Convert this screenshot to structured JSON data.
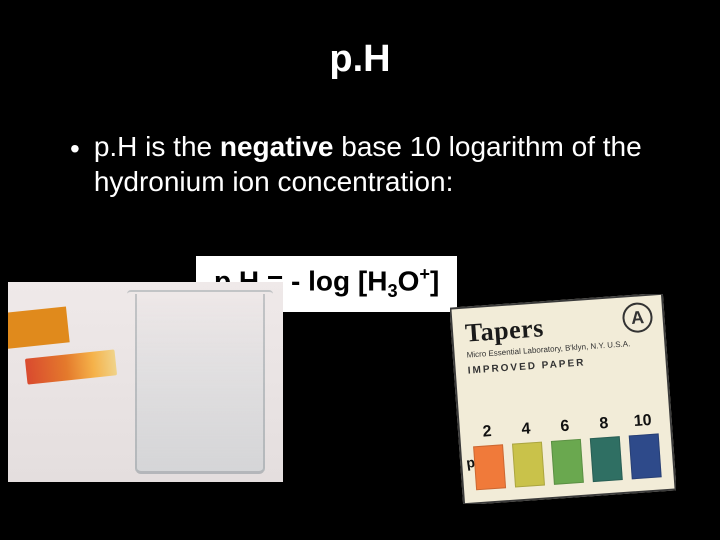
{
  "background_color": "#000000",
  "text_color": "#ffffff",
  "title": "p.H",
  "bullet": {
    "prefix": "p.H is the ",
    "emphasis": "negative",
    "suffix": " base 10 logarithm of the hydronium ion concentration:"
  },
  "formula": {
    "lhs": "p.H",
    "eq": " = - log ",
    "bracket_open": "[H",
    "subscript": "3",
    "mid": "O",
    "superscript": "+",
    "bracket_close": "]",
    "box_bg": "#ffffff",
    "box_text": "#000000"
  },
  "left_image": {
    "type": "photo-like",
    "description": "litmus-strip-over-beaker",
    "bg_color": "#efe9e9",
    "orange_tab_color": "#e08a1c",
    "strip_gradient": [
      "#d94a2f",
      "#e47a2c",
      "#f5b24a",
      "#f0d38a"
    ]
  },
  "right_image": {
    "type": "photo-like",
    "description": "ph-papers-packet",
    "packet_bg": "#f2ecd8",
    "brand": "Tapers",
    "subline1": "Micro Essential Laboratory, B'klyn, N.Y. U.S.A.",
    "improved_text": "IMPROVED  PAPER",
    "logo_letter": "A",
    "ph_label_prefix": "p",
    "ph_label_main": "H",
    "swatches": [
      {
        "value": "2",
        "color": "#f07a3a"
      },
      {
        "value": "4",
        "color": "#c9c24a"
      },
      {
        "value": "6",
        "color": "#6aa84f"
      },
      {
        "value": "8",
        "color": "#2f6f63"
      },
      {
        "value": "10",
        "color": "#2e4a8a"
      }
    ]
  }
}
